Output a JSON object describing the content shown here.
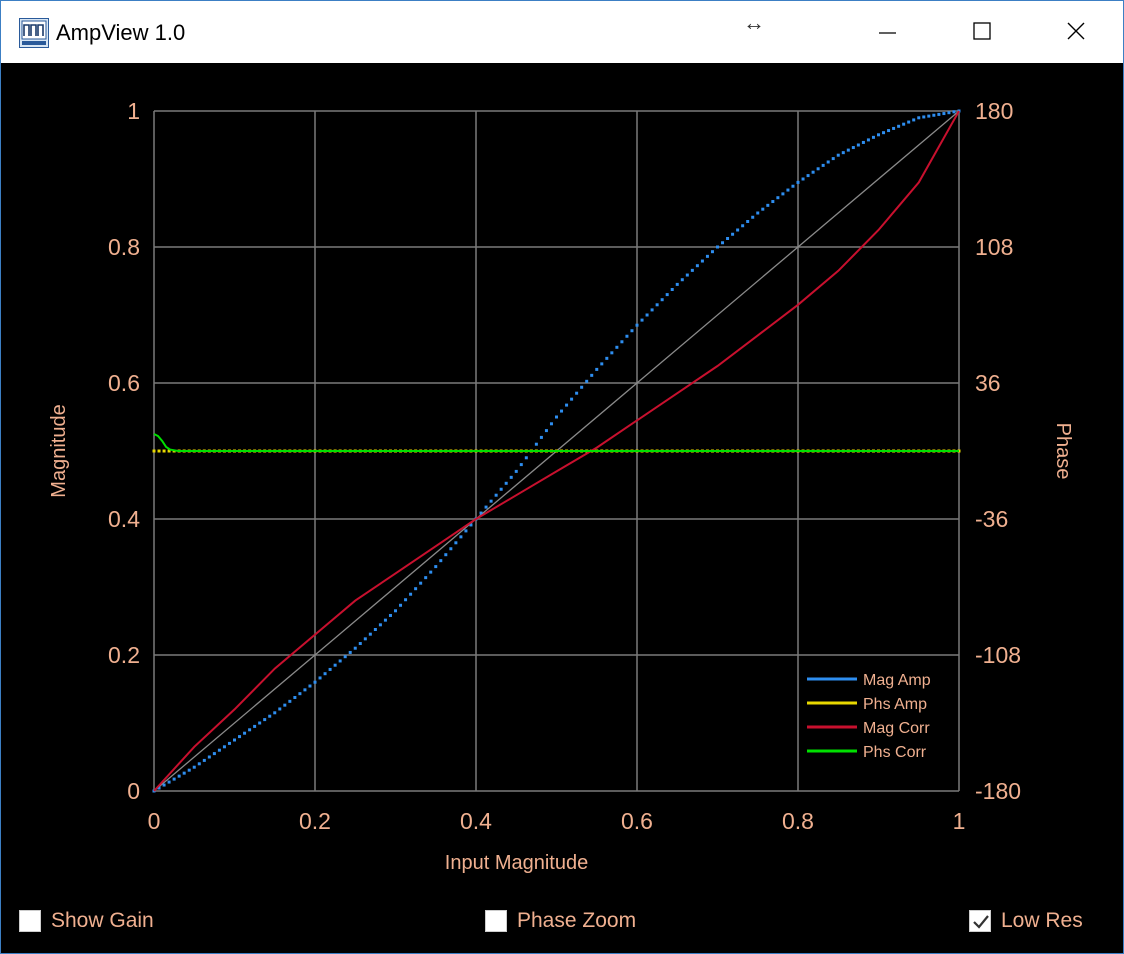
{
  "window": {
    "title": "AmpView 1.0"
  },
  "titlebar": {
    "icon": "app-logo-icon",
    "resize_icon": "horizontal-resize-icon",
    "buttons": {
      "minimize": "minimize-icon",
      "maximize": "maximize-icon",
      "close": "close-icon"
    }
  },
  "controls": {
    "show_gain": {
      "label": "Show Gain",
      "checked": false
    },
    "phase_zoom": {
      "label": "Phase Zoom",
      "checked": false
    },
    "low_res": {
      "label": "Low Res",
      "checked": true
    }
  },
  "colors": {
    "background": "#000000",
    "grid": "#7a7a7a",
    "text": "#f0b090",
    "mag_amp": "#2e8ef0",
    "phs_amp": "#e8d800",
    "mag_corr": "#c8102e",
    "phs_corr": "#00e000",
    "reference": "#8a8a8a"
  },
  "chart_data": {
    "type": "line",
    "xlabel": "Input Magnitude",
    "ylabel": "Magnitude",
    "y2label": "Phase",
    "xlim": [
      0,
      1
    ],
    "ylim": [
      0,
      1
    ],
    "y2lim": [
      -180,
      180
    ],
    "xticks": [
      "0",
      "0.2",
      "0.4",
      "0.6",
      "0.8",
      "1"
    ],
    "yticks": [
      "0",
      "0.2",
      "0.4",
      "0.6",
      "0.8",
      "1"
    ],
    "y2ticks": [
      "-180",
      "-108",
      "-36",
      "36",
      "108",
      "180"
    ],
    "grid": true,
    "legend_position": "bottom-right",
    "series": [
      {
        "name": "Mag Amp",
        "axis": "y",
        "style": "scatter",
        "x": [
          0,
          0.05,
          0.1,
          0.15,
          0.2,
          0.25,
          0.3,
          0.35,
          0.4,
          0.45,
          0.5,
          0.55,
          0.6,
          0.65,
          0.7,
          0.75,
          0.8,
          0.85,
          0.9,
          0.95,
          1.0
        ],
        "y": [
          0,
          0.035,
          0.075,
          0.115,
          0.16,
          0.21,
          0.265,
          0.33,
          0.4,
          0.47,
          0.55,
          0.62,
          0.685,
          0.745,
          0.8,
          0.85,
          0.895,
          0.935,
          0.965,
          0.99,
          1.0
        ]
      },
      {
        "name": "Phs Amp",
        "axis": "y2",
        "style": "scatter",
        "x": [
          0,
          0.05,
          0.1,
          0.15,
          0.2,
          0.25,
          0.3,
          0.35,
          0.4,
          0.45,
          0.5,
          0.55,
          0.6,
          0.65,
          0.7,
          0.75,
          0.8,
          0.85,
          0.9,
          0.95,
          1.0
        ],
        "y": [
          0.5,
          0.5,
          0.5,
          0.5,
          0.5,
          0.5,
          0.5,
          0.5,
          0.5,
          0.5,
          0.5,
          0.5,
          0.5,
          0.5,
          0.5,
          0.5,
          0.5,
          0.5,
          0.5,
          0.5,
          0.5
        ]
      },
      {
        "name": "Mag Corr",
        "axis": "y",
        "style": "line",
        "x": [
          0,
          0.05,
          0.1,
          0.15,
          0.2,
          0.25,
          0.3,
          0.35,
          0.4,
          0.45,
          0.5,
          0.55,
          0.6,
          0.65,
          0.7,
          0.75,
          0.8,
          0.85,
          0.9,
          0.95,
          1.0
        ],
        "y": [
          0,
          0.065,
          0.12,
          0.18,
          0.23,
          0.28,
          0.32,
          0.36,
          0.4,
          0.435,
          0.47,
          0.505,
          0.545,
          0.585,
          0.625,
          0.67,
          0.715,
          0.765,
          0.825,
          0.895,
          1.0
        ]
      },
      {
        "name": "Phs Corr",
        "axis": "y2",
        "style": "line",
        "x": [
          0,
          0.005,
          0.01,
          0.015,
          0.02,
          0.03,
          0.05,
          0.1,
          0.2,
          0.3,
          0.4,
          0.5,
          0.6,
          0.7,
          0.8,
          0.9,
          1.0
        ],
        "y": [
          0.525,
          0.522,
          0.515,
          0.506,
          0.502,
          0.5,
          0.5,
          0.5,
          0.5,
          0.5,
          0.5,
          0.5,
          0.5,
          0.5,
          0.5,
          0.5,
          0.5
        ]
      }
    ]
  }
}
